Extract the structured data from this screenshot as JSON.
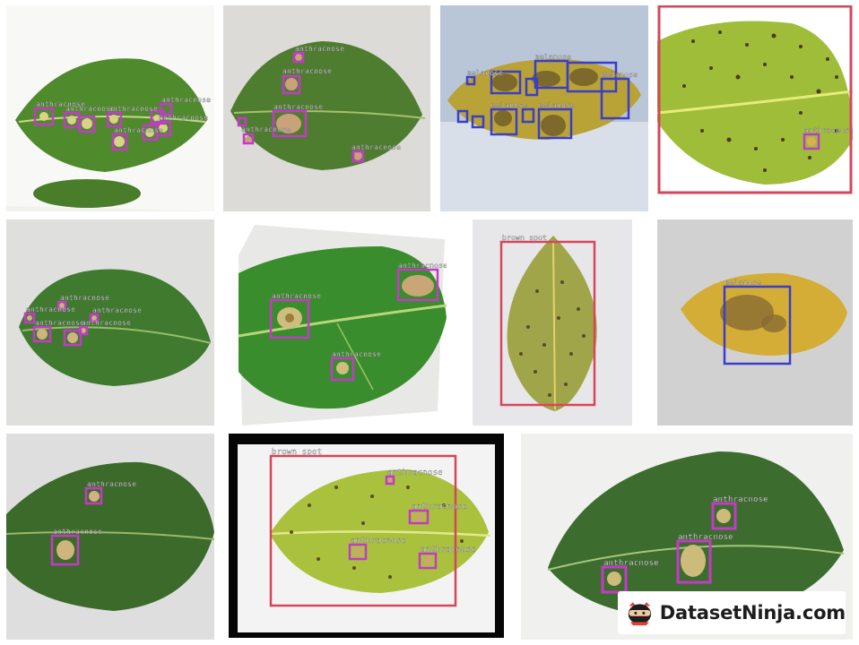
{
  "class_labels": {
    "anthracnose": "anthracnose",
    "brown_spot": "brown spot",
    "melanose": "melanose"
  },
  "label_colors": {
    "anthracnose": "#c43ac8",
    "brown_spot": "#d6465b",
    "melanose": "#3a3ec8"
  },
  "brand": {
    "name": "DatasetNinja.com",
    "logo_icon": "ninja-icon"
  }
}
